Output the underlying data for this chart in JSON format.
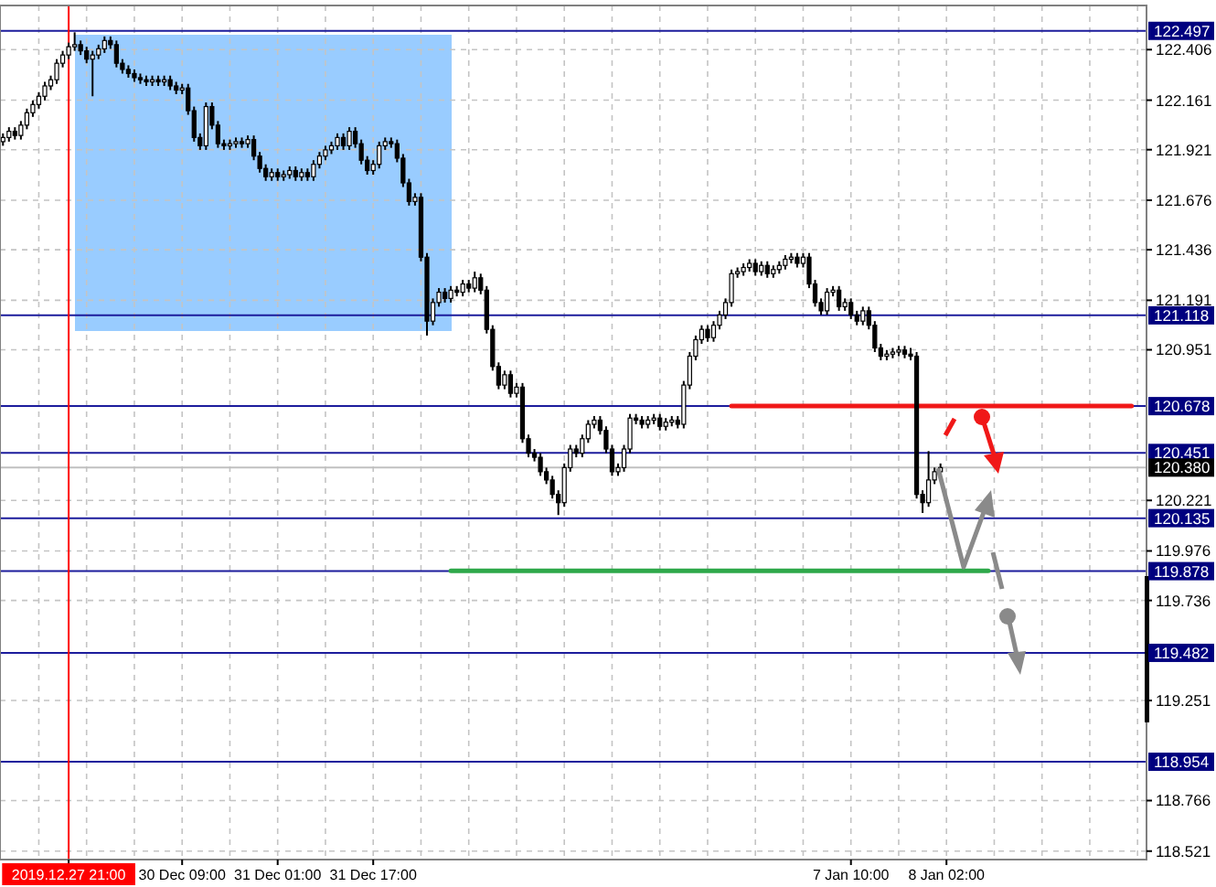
{
  "chart_data": {
    "type": "candlestick",
    "categories": [
      null,
      null,
      null,
      null,
      null,
      null,
      null,
      null,
      null,
      null,
      null,
      "2019.12.27 21:00",
      null,
      null,
      null,
      null,
      null,
      null,
      null,
      null,
      null,
      null,
      null,
      null,
      null,
      null,
      null,
      null,
      null,
      null,
      "30 Dec 09:00",
      null,
      null,
      null,
      null,
      null,
      null,
      null,
      null,
      null,
      null,
      null,
      null,
      null,
      null,
      null,
      "31 Dec 01:00",
      null,
      null,
      null,
      null,
      null,
      null,
      null,
      null,
      null,
      null,
      null,
      null,
      null,
      null,
      null,
      "31 Dec 17:00",
      null,
      null,
      null,
      null,
      null,
      null,
      null,
      null,
      null,
      null,
      null,
      null,
      null,
      null,
      null,
      null,
      null,
      null,
      null,
      null,
      null,
      null,
      null,
      null,
      null,
      null,
      null,
      null,
      null,
      null,
      null,
      null,
      null,
      null,
      null,
      null,
      null,
      null,
      null,
      null,
      null,
      null,
      null,
      null,
      null,
      null,
      null,
      null,
      null,
      null,
      null,
      null,
      null,
      null,
      null,
      null,
      null,
      null,
      null,
      null,
      null,
      null,
      null,
      null,
      null,
      null,
      null,
      null,
      null,
      null,
      null,
      null,
      null,
      null,
      null,
      null,
      null,
      null,
      null,
      "7 Jan 10:00",
      null,
      null,
      null,
      null,
      null,
      null,
      null,
      null,
      null,
      null,
      null,
      null,
      null,
      null,
      null,
      "8 Jan 02:00",
      null,
      null,
      null,
      null,
      null,
      null,
      null,
      null,
      null,
      null,
      null,
      null,
      null,
      null,
      null,
      null,
      null,
      null,
      null,
      null,
      null,
      null,
      null,
      null,
      null,
      null,
      null,
      null,
      null,
      null,
      null,
      null,
      null
    ],
    "ohlc": [
      [
        121.96,
        122.0,
        121.94,
        121.98
      ],
      [
        121.98,
        122.03,
        121.96,
        122.01
      ],
      [
        122.01,
        122.03,
        121.97,
        121.99
      ],
      [
        121.99,
        122.06,
        121.97,
        122.04
      ],
      [
        122.04,
        122.12,
        122.02,
        122.1
      ],
      [
        122.1,
        122.16,
        122.08,
        122.14
      ],
      [
        122.14,
        122.2,
        122.12,
        122.18
      ],
      [
        122.18,
        122.25,
        122.16,
        122.23
      ],
      [
        122.23,
        122.28,
        122.21,
        122.26
      ],
      [
        122.26,
        122.36,
        122.24,
        122.34
      ],
      [
        122.34,
        122.4,
        122.32,
        122.38
      ],
      [
        122.38,
        122.44,
        122.36,
        122.42
      ],
      [
        122.42,
        122.49,
        122.4,
        122.43
      ],
      [
        122.43,
        122.45,
        122.38,
        122.4
      ],
      [
        122.4,
        122.42,
        122.34,
        122.36
      ],
      [
        122.36,
        122.4,
        122.18,
        122.38
      ],
      [
        122.38,
        122.43,
        122.36,
        122.41
      ],
      [
        122.41,
        122.47,
        122.39,
        122.45
      ],
      [
        122.45,
        122.47,
        122.41,
        122.43
      ],
      [
        122.43,
        122.45,
        122.32,
        122.34
      ],
      [
        122.34,
        122.36,
        122.29,
        122.31
      ],
      [
        122.31,
        122.33,
        122.27,
        122.29
      ],
      [
        122.29,
        122.31,
        122.25,
        122.27
      ],
      [
        122.27,
        122.29,
        122.24,
        122.26
      ],
      [
        122.26,
        122.28,
        122.23,
        122.25
      ],
      [
        122.25,
        122.28,
        122.23,
        122.26
      ],
      [
        122.26,
        122.28,
        122.23,
        122.25
      ],
      [
        122.25,
        122.28,
        122.23,
        122.26
      ],
      [
        122.26,
        122.28,
        122.21,
        122.23
      ],
      [
        122.23,
        122.25,
        122.19,
        122.21
      ],
      [
        122.21,
        122.24,
        122.19,
        122.22
      ],
      [
        122.22,
        122.24,
        122.09,
        122.11
      ],
      [
        122.11,
        122.13,
        121.96,
        121.98
      ],
      [
        121.98,
        122.0,
        121.92,
        121.94
      ],
      [
        121.94,
        122.15,
        121.92,
        122.13
      ],
      [
        122.13,
        122.15,
        122.02,
        122.04
      ],
      [
        122.04,
        122.06,
        121.93,
        121.95
      ],
      [
        121.95,
        121.97,
        121.92,
        121.94
      ],
      [
        121.94,
        121.97,
        121.92,
        121.95
      ],
      [
        121.95,
        121.98,
        121.93,
        121.96
      ],
      [
        121.96,
        121.98,
        121.93,
        121.95
      ],
      [
        121.95,
        121.99,
        121.93,
        121.97
      ],
      [
        121.97,
        121.99,
        121.87,
        121.89
      ],
      [
        121.89,
        121.91,
        121.81,
        121.83
      ],
      [
        121.83,
        121.85,
        121.77,
        121.79
      ],
      [
        121.79,
        121.83,
        121.77,
        121.81
      ],
      [
        121.81,
        121.83,
        121.77,
        121.79
      ],
      [
        121.79,
        121.82,
        121.77,
        121.8
      ],
      [
        121.8,
        121.84,
        121.78,
        121.82
      ],
      [
        121.82,
        121.84,
        121.77,
        121.79
      ],
      [
        121.79,
        121.83,
        121.77,
        121.81
      ],
      [
        121.81,
        121.83,
        121.77,
        121.79
      ],
      [
        121.79,
        121.87,
        121.77,
        121.85
      ],
      [
        121.85,
        121.91,
        121.83,
        121.89
      ],
      [
        121.89,
        121.94,
        121.87,
        121.92
      ],
      [
        121.92,
        121.96,
        121.9,
        121.94
      ],
      [
        121.94,
        122.0,
        121.92,
        121.98
      ],
      [
        121.98,
        122.0,
        121.92,
        121.94
      ],
      [
        121.94,
        122.03,
        121.92,
        122.01
      ],
      [
        122.01,
        122.03,
        121.93,
        121.95
      ],
      [
        121.95,
        121.97,
        121.85,
        121.87
      ],
      [
        121.87,
        121.89,
        121.8,
        121.82
      ],
      [
        121.82,
        121.87,
        121.8,
        121.85
      ],
      [
        121.85,
        121.96,
        121.83,
        121.94
      ],
      [
        121.94,
        121.98,
        121.92,
        121.96
      ],
      [
        121.96,
        121.98,
        121.93,
        121.95
      ],
      [
        121.95,
        121.97,
        121.86,
        121.88
      ],
      [
        121.88,
        121.9,
        121.74,
        121.76
      ],
      [
        121.76,
        121.78,
        121.65,
        121.67
      ],
      [
        121.67,
        121.71,
        121.65,
        121.69
      ],
      [
        121.69,
        121.71,
        121.38,
        121.4
      ],
      [
        121.4,
        121.42,
        121.02,
        121.09
      ],
      [
        121.09,
        121.2,
        121.07,
        121.18
      ],
      [
        121.18,
        121.25,
        121.16,
        121.23
      ],
      [
        121.23,
        121.25,
        121.18,
        121.2
      ],
      [
        121.2,
        121.26,
        121.18,
        121.24
      ],
      [
        121.24,
        121.26,
        121.21,
        121.23
      ],
      [
        121.23,
        121.29,
        121.21,
        121.27
      ],
      [
        121.27,
        121.29,
        121.23,
        121.25
      ],
      [
        121.25,
        121.33,
        121.23,
        121.3
      ],
      [
        121.3,
        121.32,
        121.22,
        121.24
      ],
      [
        121.24,
        121.26,
        121.03,
        121.05
      ],
      [
        121.05,
        121.07,
        120.85,
        120.87
      ],
      [
        120.87,
        120.89,
        120.76,
        120.78
      ],
      [
        120.78,
        120.85,
        120.76,
        120.83
      ],
      [
        120.83,
        120.85,
        120.72,
        120.74
      ],
      [
        120.74,
        120.79,
        120.72,
        120.77
      ],
      [
        120.77,
        120.79,
        120.5,
        120.52
      ],
      [
        120.52,
        120.54,
        120.43,
        120.45
      ],
      [
        120.45,
        120.47,
        120.41,
        120.43
      ],
      [
        120.43,
        120.45,
        120.34,
        120.36
      ],
      [
        120.36,
        120.38,
        120.3,
        120.32
      ],
      [
        120.32,
        120.34,
        120.23,
        120.25
      ],
      [
        120.25,
        120.27,
        120.15,
        120.21
      ],
      [
        120.21,
        120.4,
        120.19,
        120.38
      ],
      [
        120.38,
        120.49,
        120.36,
        120.47
      ],
      [
        120.47,
        120.49,
        120.43,
        120.45
      ],
      [
        120.45,
        120.54,
        120.43,
        120.52
      ],
      [
        120.52,
        120.61,
        120.5,
        120.59
      ],
      [
        120.59,
        120.63,
        120.57,
        120.61
      ],
      [
        120.61,
        120.63,
        120.54,
        120.56
      ],
      [
        120.56,
        120.58,
        120.45,
        120.47
      ],
      [
        120.47,
        120.49,
        120.34,
        120.36
      ],
      [
        120.36,
        120.4,
        120.34,
        120.38
      ],
      [
        120.38,
        120.49,
        120.36,
        120.47
      ],
      [
        120.47,
        120.64,
        120.45,
        120.62
      ],
      [
        120.62,
        120.64,
        120.59,
        120.61
      ],
      [
        120.61,
        120.63,
        120.57,
        120.59
      ],
      [
        120.59,
        120.63,
        120.57,
        120.61
      ],
      [
        120.61,
        120.64,
        120.59,
        120.62
      ],
      [
        120.62,
        120.64,
        120.56,
        120.58
      ],
      [
        120.58,
        120.62,
        120.56,
        120.6
      ],
      [
        120.6,
        120.63,
        120.58,
        120.61
      ],
      [
        120.61,
        120.63,
        120.57,
        120.59
      ],
      [
        120.59,
        120.8,
        120.57,
        120.78
      ],
      [
        120.78,
        120.94,
        120.76,
        120.92
      ],
      [
        120.92,
        121.02,
        120.9,
        121.0
      ],
      [
        121.0,
        121.07,
        120.98,
        121.05
      ],
      [
        121.05,
        121.07,
        120.99,
        121.01
      ],
      [
        121.01,
        121.09,
        120.99,
        121.07
      ],
      [
        121.07,
        121.14,
        121.05,
        121.12
      ],
      [
        121.12,
        121.2,
        121.1,
        121.18
      ],
      [
        121.18,
        121.34,
        121.16,
        121.32
      ],
      [
        121.32,
        121.35,
        121.3,
        121.33
      ],
      [
        121.33,
        121.37,
        121.31,
        121.35
      ],
      [
        121.35,
        121.39,
        121.33,
        121.37
      ],
      [
        121.37,
        121.39,
        121.31,
        121.33
      ],
      [
        121.33,
        121.38,
        121.31,
        121.36
      ],
      [
        121.36,
        121.38,
        121.3,
        121.32
      ],
      [
        121.32,
        121.36,
        121.3,
        121.34
      ],
      [
        121.34,
        121.38,
        121.32,
        121.36
      ],
      [
        121.36,
        121.41,
        121.34,
        121.39
      ],
      [
        121.39,
        121.42,
        121.37,
        121.4
      ],
      [
        121.4,
        121.42,
        121.35,
        121.37
      ],
      [
        121.37,
        121.42,
        121.35,
        121.4
      ],
      [
        121.4,
        121.42,
        121.25,
        121.27
      ],
      [
        121.27,
        121.29,
        121.16,
        121.18
      ],
      [
        121.18,
        121.2,
        121.12,
        121.14
      ],
      [
        121.14,
        121.25,
        121.12,
        121.23
      ],
      [
        121.23,
        121.26,
        121.21,
        121.24
      ],
      [
        121.24,
        121.26,
        121.14,
        121.16
      ],
      [
        121.16,
        121.2,
        121.14,
        121.18
      ],
      [
        121.18,
        121.2,
        121.1,
        121.12
      ],
      [
        121.12,
        121.14,
        121.07,
        121.09
      ],
      [
        121.09,
        121.16,
        121.07,
        121.14
      ],
      [
        121.14,
        121.16,
        121.05,
        121.07
      ],
      [
        121.07,
        121.09,
        120.94,
        120.96
      ],
      [
        120.96,
        120.98,
        120.9,
        120.92
      ],
      [
        120.92,
        120.95,
        120.9,
        120.93
      ],
      [
        120.93,
        120.96,
        120.91,
        120.94
      ],
      [
        120.94,
        120.97,
        120.92,
        120.95
      ],
      [
        120.95,
        120.97,
        120.91,
        120.93
      ],
      [
        120.93,
        120.96,
        120.9,
        120.92
      ],
      [
        120.92,
        120.94,
        120.23,
        120.25
      ],
      [
        120.25,
        120.27,
        120.16,
        120.21
      ],
      [
        120.21,
        120.46,
        120.19,
        120.32
      ],
      [
        120.32,
        120.38,
        120.3,
        120.36
      ],
      [
        120.36,
        120.4,
        120.34,
        120.38
      ],
      null,
      null,
      null,
      null,
      null,
      null,
      null,
      null,
      null,
      null,
      null,
      null,
      null,
      null,
      null,
      null,
      null,
      null,
      null,
      null,
      null,
      null,
      null,
      null,
      null,
      null,
      null,
      null,
      null,
      null,
      null,
      null,
      null,
      null
    ],
    "series": [
      {
        "type": "line",
        "color": "#f01818",
        "values": [
          null,
          null,
          null,
          null,
          null,
          null,
          null,
          null,
          null,
          null,
          null,
          null,
          null,
          null,
          null,
          null,
          null,
          null,
          null,
          null,
          null,
          null,
          null,
          null,
          null,
          null,
          null,
          null,
          null,
          null,
          null,
          null,
          null,
          null,
          null,
          null,
          null,
          null,
          null,
          null,
          null,
          null,
          null,
          null,
          null,
          null,
          null,
          null,
          null,
          null,
          null,
          null,
          null,
          null,
          null,
          null,
          null,
          null,
          null,
          null,
          null,
          null,
          null,
          null,
          null,
          null,
          null,
          null,
          null,
          null,
          null,
          null,
          null,
          null,
          null,
          null,
          null,
          null,
          null,
          null,
          null,
          null,
          null,
          null,
          null,
          null,
          null,
          null,
          null,
          null,
          null,
          null,
          null,
          null,
          null,
          null,
          null,
          null,
          null,
          null,
          null,
          null,
          null,
          null,
          null,
          null,
          null,
          null,
          null,
          null,
          null,
          null,
          null,
          null,
          null,
          null,
          null,
          null,
          null,
          null,
          null,
          null,
          120.678,
          120.678,
          120.678,
          120.678,
          120.678,
          120.678,
          120.678,
          120.678,
          120.678,
          120.678,
          120.678,
          120.678,
          120.678,
          120.678,
          120.678,
          120.678,
          120.678,
          120.678,
          120.678,
          120.678,
          120.678,
          120.678,
          120.678,
          120.678,
          120.678,
          120.678,
          120.678,
          120.678,
          120.678,
          120.678,
          120.678,
          120.678,
          120.678,
          120.678,
          120.678,
          120.678,
          120.678,
          120.678,
          120.678,
          120.678,
          120.678,
          120.678,
          120.678,
          120.678,
          120.678,
          120.678,
          120.678,
          120.678,
          120.678,
          120.678,
          120.678,
          120.678,
          120.678,
          120.678,
          120.678,
          120.678,
          120.678,
          120.678,
          120.678,
          120.678,
          120.678,
          120.678,
          120.678,
          120.678,
          120.678,
          120.678,
          120.678,
          120.678,
          null,
          null
        ]
      },
      {
        "type": "line",
        "color": "#2ea84a",
        "values": [
          null,
          null,
          null,
          null,
          null,
          null,
          null,
          null,
          null,
          null,
          null,
          null,
          null,
          null,
          null,
          null,
          null,
          null,
          null,
          null,
          null,
          null,
          null,
          null,
          null,
          null,
          null,
          null,
          null,
          null,
          null,
          null,
          null,
          null,
          null,
          null,
          null,
          null,
          null,
          null,
          null,
          null,
          null,
          null,
          null,
          null,
          null,
          null,
          null,
          null,
          null,
          null,
          null,
          null,
          null,
          null,
          null,
          null,
          null,
          null,
          null,
          null,
          null,
          null,
          null,
          null,
          null,
          null,
          null,
          null,
          null,
          null,
          null,
          null,
          null,
          119.88,
          119.88,
          119.88,
          119.88,
          119.88,
          119.88,
          119.88,
          119.88,
          119.88,
          119.88,
          119.88,
          119.88,
          119.88,
          119.88,
          119.88,
          119.88,
          119.88,
          119.88,
          119.88,
          119.88,
          119.88,
          119.88,
          119.88,
          119.88,
          119.88,
          119.88,
          119.88,
          119.88,
          119.88,
          119.88,
          119.88,
          119.88,
          119.88,
          119.88,
          119.88,
          119.88,
          119.88,
          119.88,
          119.88,
          119.88,
          119.88,
          119.88,
          119.88,
          119.88,
          119.88,
          119.88,
          119.88,
          119.88,
          119.88,
          119.88,
          119.88,
          119.88,
          119.88,
          119.88,
          119.88,
          119.88,
          119.88,
          119.88,
          119.88,
          119.88,
          119.88,
          119.88,
          119.88,
          119.88,
          119.88,
          119.88,
          119.88,
          119.88,
          119.88,
          119.88,
          119.88,
          119.88,
          119.88,
          119.88,
          119.88,
          119.88,
          119.88,
          119.88,
          119.88,
          119.88,
          119.88,
          119.88,
          119.88,
          119.88,
          119.88,
          119.88,
          119.88,
          119.88,
          119.88,
          119.88,
          119.88,
          null,
          null,
          null,
          null,
          null,
          null,
          null,
          null,
          null,
          null,
          null,
          null,
          null,
          null,
          null,
          null,
          null,
          null,
          null,
          null,
          null,
          null,
          null,
          null,
          null,
          null
        ]
      }
    ],
    "ylim": [
      118.48,
      122.62
    ],
    "yticks": [
      122.406,
      122.161,
      121.921,
      121.676,
      121.436,
      121.191,
      120.951,
      120.221,
      119.976,
      119.736,
      119.251,
      118.766,
      118.521
    ],
    "ref_lines": [
      {
        "axis": "y",
        "value": 122.497,
        "label": "122.497",
        "color": "#1c1c9c"
      },
      {
        "axis": "y",
        "value": 121.118,
        "label": "121.118",
        "color": "#1c1c9c"
      },
      {
        "axis": "y",
        "value": 120.678,
        "label": "120.678",
        "color": "#1c1c9c"
      },
      {
        "axis": "y",
        "value": 120.451,
        "label": "120.451",
        "color": "#1c1c9c"
      },
      {
        "axis": "y",
        "value": 120.38,
        "label": "120.380",
        "color": "#c0c0c0"
      },
      {
        "axis": "y",
        "value": 120.135,
        "label": "120.135",
        "color": "#1c1c9c"
      },
      {
        "axis": "y",
        "value": 119.878,
        "label": "119.878",
        "color": "#1c1c9c"
      },
      {
        "axis": "y",
        "value": 119.482,
        "label": "119.482",
        "color": "#1c1c9c"
      },
      {
        "axis": "y",
        "value": 118.954,
        "label": "118.954",
        "color": "#1c1c9c"
      },
      {
        "axis": "x",
        "value": "2019.12.27 21:00",
        "color": "#ff0000"
      }
    ],
    "grid": true
  }
}
